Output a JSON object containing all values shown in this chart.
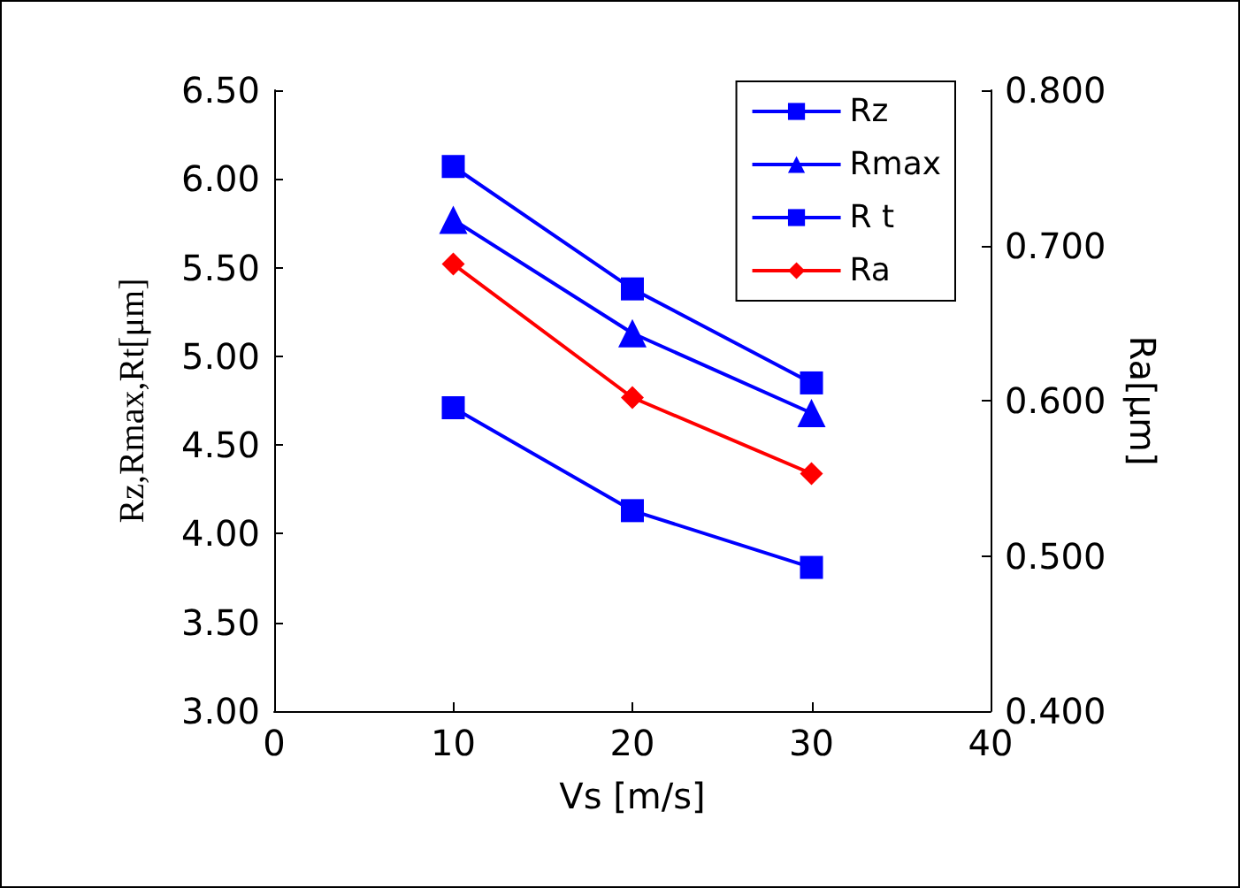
{
  "chart_data": {
    "type": "line",
    "xlabel": "Vs [m/s]",
    "ylabel": "Rz,Rmax,Rt[μm]",
    "y2label": "Ra[μm]",
    "x": [
      10,
      20,
      30
    ],
    "series": [
      {
        "name": "Rz",
        "color": "#0000ff",
        "marker": "square",
        "values": [
          4.71,
          4.13,
          3.81
        ]
      },
      {
        "name": "Rmax",
        "color": "#0000ff",
        "marker": "triangle",
        "values": [
          5.77,
          5.13,
          4.68
        ]
      },
      {
        "name": "R t",
        "color": "#0000ff",
        "marker": "square",
        "values": [
          6.07,
          5.38,
          4.85
        ]
      },
      {
        "name": "Ra",
        "color": "#ff0000",
        "marker": "diamond",
        "axis": "y2",
        "values": [
          0.688,
          0.602,
          0.553
        ]
      }
    ],
    "xlim": [
      0,
      40
    ],
    "xticks": [
      0,
      10,
      20,
      30,
      40
    ],
    "ylim": [
      3,
      6.5
    ],
    "yticks": [
      {
        "value": 3,
        "label": "3.00"
      },
      {
        "value": 3.5,
        "label": "3.50"
      },
      {
        "value": 4,
        "label": "4.00"
      },
      {
        "value": 4.5,
        "label": "4.50"
      },
      {
        "value": 5,
        "label": "5.00"
      },
      {
        "value": 5.5,
        "label": "5.50"
      },
      {
        "value": 6,
        "label": "6.00"
      },
      {
        "value": 6.5,
        "label": "6.50"
      }
    ],
    "y2lim": [
      0.4,
      0.8
    ],
    "y2ticks": [
      {
        "value": 0.4,
        "label": "0.400"
      },
      {
        "value": 0.5,
        "label": "0.500"
      },
      {
        "value": 0.6,
        "label": "0.600"
      },
      {
        "value": 0.7,
        "label": "0.700"
      },
      {
        "value": 0.8,
        "label": "0.800"
      }
    ],
    "grid": false,
    "legend": "top right",
    "line_style": "solid"
  }
}
